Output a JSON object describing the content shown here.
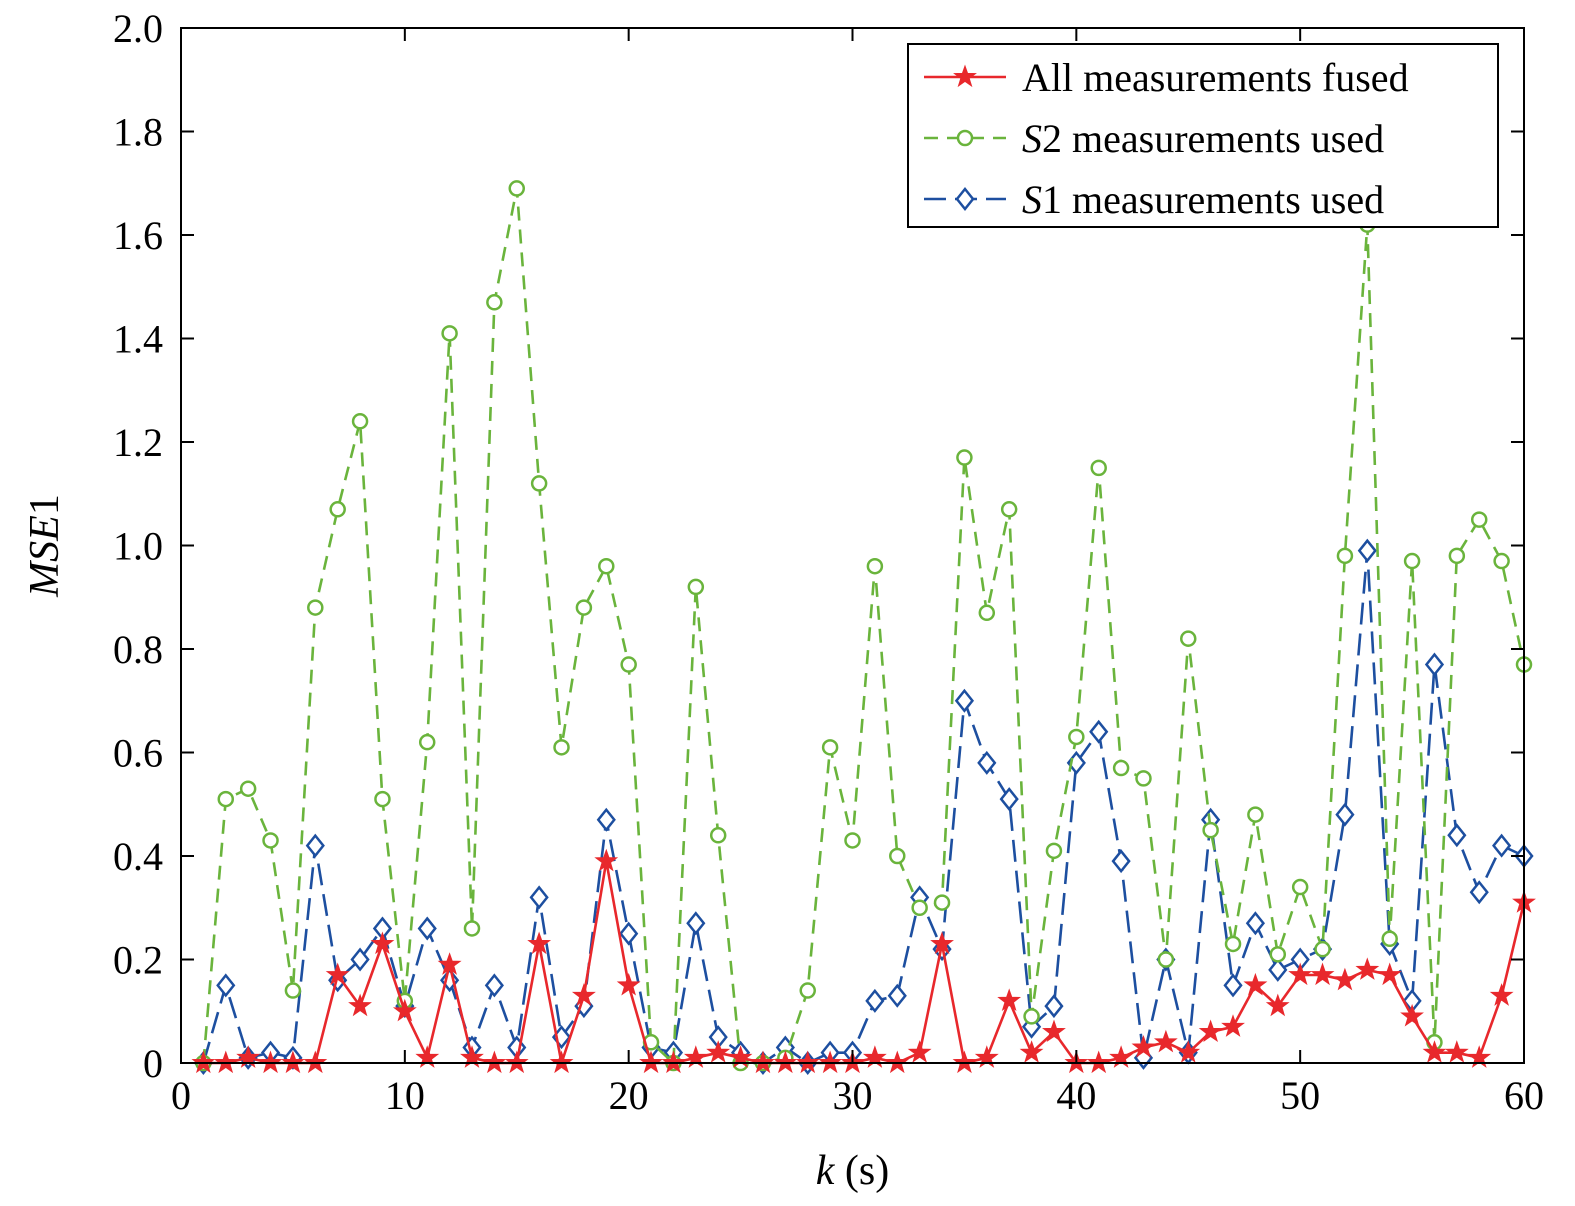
{
  "chart_data": {
    "type": "line",
    "xlabel": {
      "italic": "k",
      "rest": " (s)"
    },
    "ylabel": {
      "italic": "MSE",
      "rest": "1"
    },
    "xlim": [
      0,
      60
    ],
    "ylim": [
      0,
      2.0
    ],
    "xticks": [
      0,
      10,
      20,
      30,
      40,
      50,
      60
    ],
    "yticks": [
      0,
      0.2,
      0.4,
      0.6,
      0.8,
      1.0,
      1.2,
      1.4,
      1.6,
      1.8,
      2.0
    ],
    "ytick_labels": [
      "0",
      "0.2",
      "0.4",
      "0.6",
      "0.8",
      "1.0",
      "1.2",
      "1.4",
      "1.6",
      "1.8",
      "2.0"
    ],
    "grid": false,
    "legend_position": "top-right",
    "x": [
      1,
      2,
      3,
      4,
      5,
      6,
      7,
      8,
      9,
      10,
      11,
      12,
      13,
      14,
      15,
      16,
      17,
      18,
      19,
      20,
      21,
      22,
      23,
      24,
      25,
      26,
      27,
      28,
      29,
      30,
      31,
      32,
      33,
      34,
      35,
      36,
      37,
      38,
      39,
      40,
      41,
      42,
      43,
      44,
      45,
      46,
      47,
      48,
      49,
      50,
      51,
      52,
      53,
      54,
      55,
      56,
      57,
      58,
      59,
      60
    ],
    "series": [
      {
        "name": "All measurements fused",
        "legend_italic": "",
        "legend_rest": "All measurements fused",
        "color": "#e8282c",
        "dash": "",
        "marker": "star",
        "values": [
          0.0,
          0.0,
          0.01,
          0.0,
          0.0,
          0.0,
          0.17,
          0.11,
          0.23,
          0.1,
          0.01,
          0.19,
          0.01,
          0.0,
          0.0,
          0.23,
          0.0,
          0.13,
          0.39,
          0.15,
          0.0,
          0.0,
          0.01,
          0.02,
          0.01,
          0.0,
          0.0,
          0.0,
          0.0,
          0.0,
          0.01,
          0.0,
          0.02,
          0.23,
          0.0,
          0.01,
          0.12,
          0.02,
          0.06,
          0.0,
          0.0,
          0.01,
          0.03,
          0.04,
          0.02,
          0.06,
          0.07,
          0.15,
          0.11,
          0.17,
          0.17,
          0.16,
          0.18,
          0.17,
          0.09,
          0.02,
          0.02,
          0.01,
          0.13,
          0.31
        ]
      },
      {
        "name": "S2 measurements used",
        "legend_italic": "S",
        "legend_rest": "2 measurements used",
        "color": "#6ab43c",
        "dash": "14,9",
        "marker": "circle",
        "values": [
          0.0,
          0.51,
          0.53,
          0.43,
          0.14,
          0.88,
          1.07,
          1.24,
          0.51,
          0.12,
          0.62,
          1.41,
          0.26,
          1.47,
          1.69,
          1.12,
          0.61,
          0.88,
          0.96,
          0.77,
          0.04,
          0.0,
          0.92,
          0.44,
          0.0,
          0.0,
          0.01,
          0.14,
          0.61,
          0.43,
          0.96,
          0.4,
          0.3,
          0.31,
          1.17,
          0.87,
          1.07,
          0.09,
          0.41,
          0.63,
          1.15,
          0.57,
          0.55,
          0.2,
          0.82,
          0.45,
          0.23,
          0.48,
          0.21,
          0.34,
          0.22,
          0.98,
          1.62,
          0.24,
          0.97,
          0.04,
          0.98,
          1.05,
          0.97,
          0.77
        ]
      },
      {
        "name": "S1 measurements used",
        "legend_italic": "S",
        "legend_rest": "1 measurements used",
        "color": "#1d4fa0",
        "dash": "22,9",
        "marker": "diamond",
        "values": [
          0.0,
          0.15,
          0.01,
          0.02,
          0.01,
          0.42,
          0.16,
          0.2,
          0.26,
          0.11,
          0.26,
          0.16,
          0.03,
          0.15,
          0.03,
          0.32,
          0.05,
          0.11,
          0.47,
          0.25,
          0.03,
          0.02,
          0.27,
          0.05,
          0.02,
          0.0,
          0.03,
          0.0,
          0.02,
          0.02,
          0.12,
          0.13,
          0.32,
          0.22,
          0.7,
          0.58,
          0.51,
          0.07,
          0.11,
          0.58,
          0.64,
          0.39,
          0.01,
          0.2,
          0.02,
          0.47,
          0.15,
          0.27,
          0.18,
          0.2,
          0.22,
          0.48,
          0.99,
          0.23,
          0.12,
          0.77,
          0.44,
          0.33,
          0.42,
          0.4
        ]
      }
    ]
  }
}
